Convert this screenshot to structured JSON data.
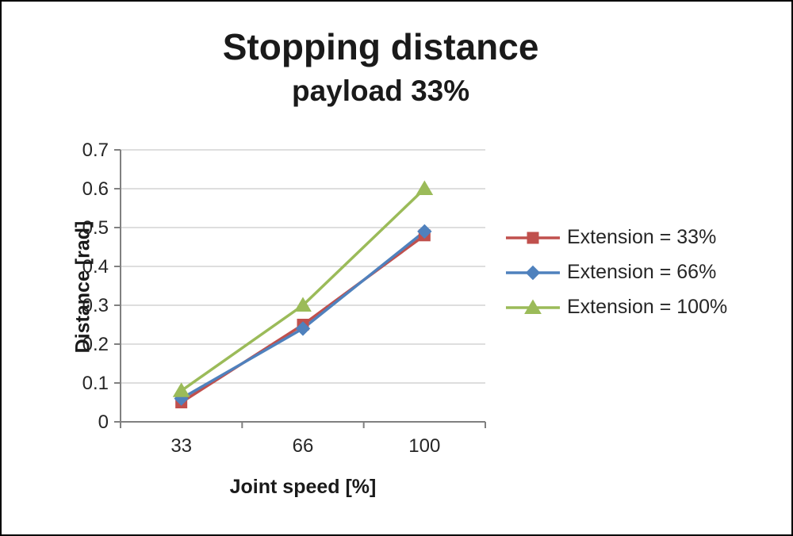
{
  "chart_data": {
    "type": "line",
    "title": "Stopping distance",
    "subtitle": "payload 33%",
    "xlabel": "Joint speed [%]",
    "ylabel": "Distance [rad]",
    "categories": [
      "33",
      "66",
      "100"
    ],
    "series": [
      {
        "name": "Extension = 33%",
        "marker": "square",
        "color": "#C0504D",
        "values": [
          0.05,
          0.25,
          0.48
        ]
      },
      {
        "name": "Extension = 66%",
        "marker": "diamond",
        "color": "#4F81BD",
        "values": [
          0.06,
          0.24,
          0.49
        ]
      },
      {
        "name": "Extension = 100%",
        "marker": "triangle",
        "color": "#9BBB59",
        "values": [
          0.08,
          0.3,
          0.6
        ]
      }
    ],
    "ylim": [
      0,
      0.7
    ],
    "ytick_step": 0.1,
    "grid": "horizontal",
    "grid_color": "#C9C9C9",
    "axis_color": "#808080",
    "legend_position": "right"
  }
}
